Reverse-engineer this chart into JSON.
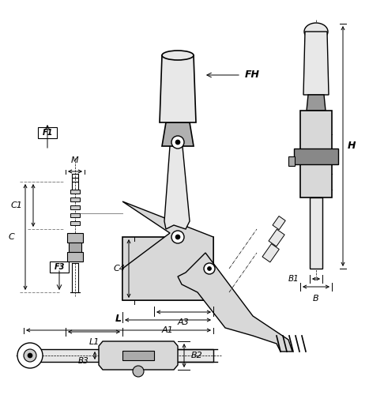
{
  "bg_color": "#ffffff",
  "line_color": "#000000",
  "dim_color": "#000000",
  "fill_color": "#d8d8d8",
  "fill_color2": "#e8e8e8",
  "title": "",
  "labels": {
    "FH": "FH",
    "F1": "F1",
    "F3": "F3",
    "M": "M",
    "C1": "C1",
    "C": "C",
    "C4": "C4",
    "A3": "A3",
    "A1": "A1",
    "L1": "L1",
    "H": "H",
    "B1": "B1",
    "B": "B",
    "B2": "B2",
    "B3": "B3",
    "L": "L"
  }
}
